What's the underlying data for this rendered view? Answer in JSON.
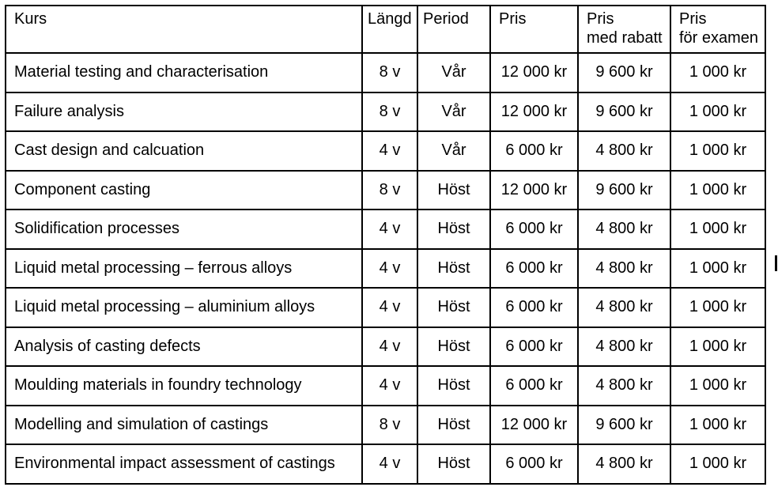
{
  "page": {
    "background_color": "#ffffff",
    "border_color": "#000000",
    "text_color": "#000000"
  },
  "table": {
    "headers": [
      "Kurs",
      "Längd",
      "Period",
      "Pris",
      "Pris\nmed rabatt",
      "Pris\nför examen"
    ],
    "rows": [
      {
        "course": "Material testing and characterisation",
        "length": "8 v",
        "period": "Vår",
        "price": "12 000 kr",
        "price_discount": "9 600 kr",
        "price_exam": "1 000 kr"
      },
      {
        "course": "Failure analysis",
        "length": "8 v",
        "period": "Vår",
        "price": "12 000 kr",
        "price_discount": "9 600 kr",
        "price_exam": "1 000 kr"
      },
      {
        "course": "Cast design and calcuation",
        "length": "4 v",
        "period": "Vår",
        "price": "6 000 kr",
        "price_discount": "4 800 kr",
        "price_exam": "1 000 kr"
      },
      {
        "course": "Component casting",
        "length": "8 v",
        "period": "Höst",
        "price": "12 000 kr",
        "price_discount": "9 600 kr",
        "price_exam": "1 000 kr"
      },
      {
        "course": "Solidification processes",
        "length": "4 v",
        "period": "Höst",
        "price": "6 000 kr",
        "price_discount": "4 800 kr",
        "price_exam": "1 000 kr"
      },
      {
        "course": "Liquid metal processing – ferrous alloys",
        "length": "4 v",
        "period": "Höst",
        "price": "6 000 kr",
        "price_discount": "4 800 kr",
        "price_exam": "1 000 kr"
      },
      {
        "course": "Liquid metal processing – aluminium alloys",
        "length": "4 v",
        "period": "Höst",
        "price": "6 000 kr",
        "price_discount": "4 800 kr",
        "price_exam": "1 000 kr"
      },
      {
        "course": "Analysis of casting defects",
        "length": "4 v",
        "period": "Höst",
        "price": "6 000 kr",
        "price_discount": "4 800 kr",
        "price_exam": "1 000 kr"
      },
      {
        "course": "Moulding materials in foundry technology",
        "length": "4 v",
        "period": "Höst",
        "price": "6 000 kr",
        "price_discount": "4 800 kr",
        "price_exam": "1 000 kr"
      },
      {
        "course": "Modelling and simulation of castings",
        "length": "8 v",
        "period": "Höst",
        "price": "12 000 kr",
        "price_discount": "9 600 kr",
        "price_exam": "1 000 kr"
      },
      {
        "course": "Environmental impact assessment of castings",
        "length": "4 v",
        "period": "Höst",
        "price": "6 000 kr",
        "price_discount": "4 800 kr",
        "price_exam": "1 000 kr"
      }
    ]
  }
}
